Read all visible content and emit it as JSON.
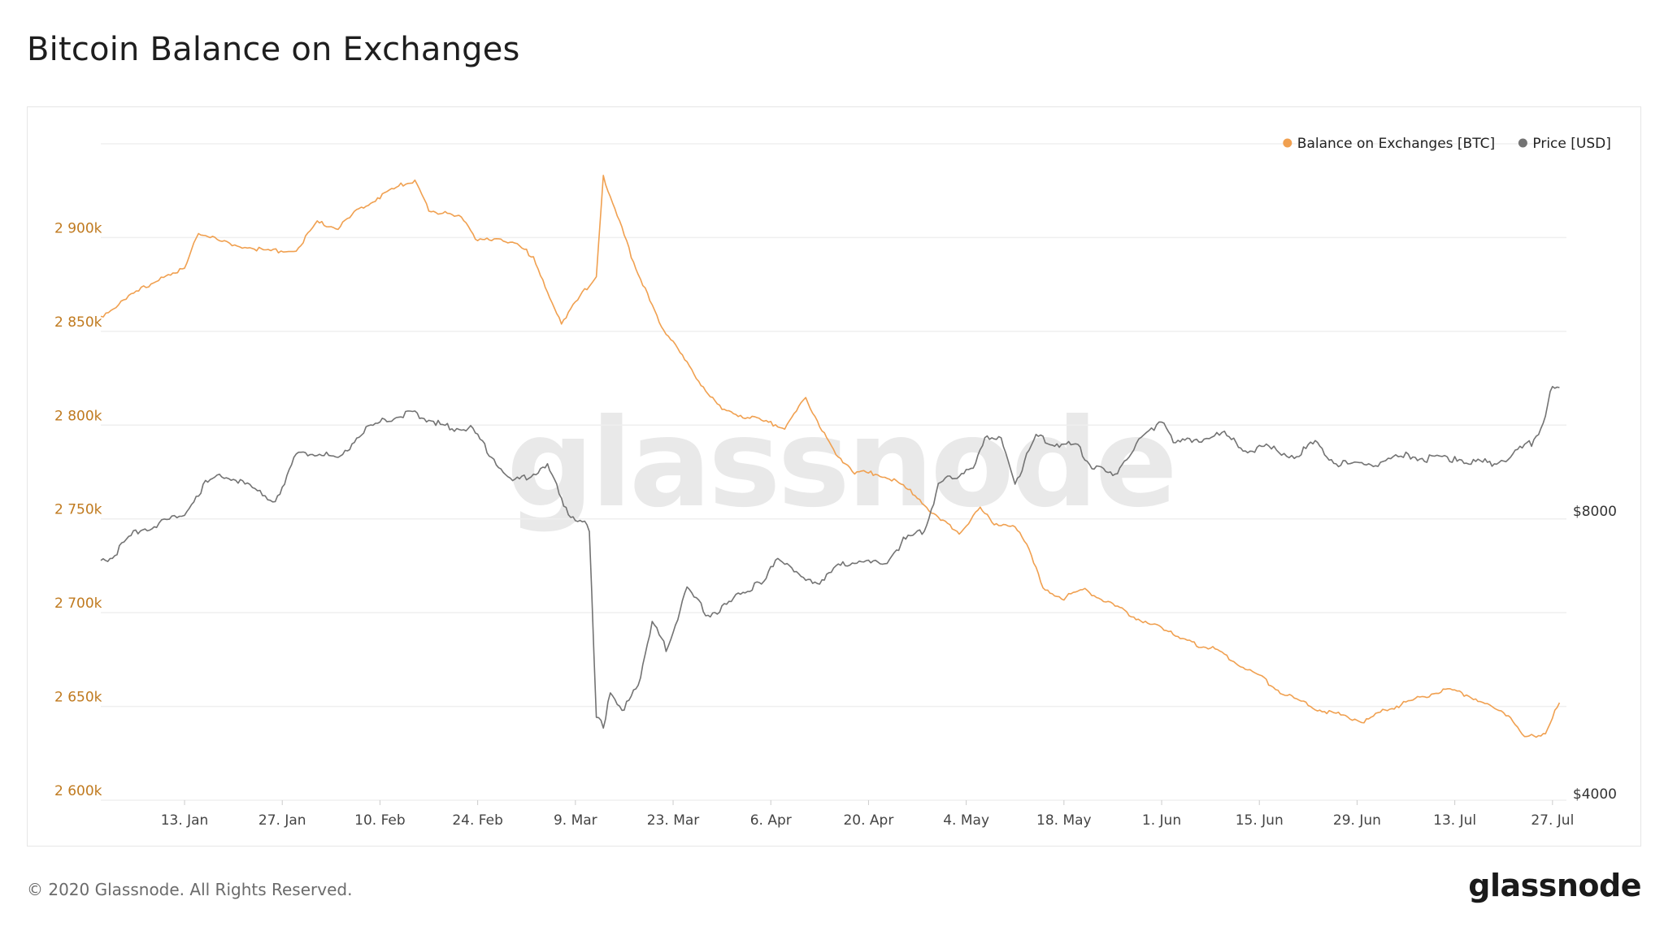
{
  "page": {
    "title": "Bitcoin Balance on Exchanges",
    "copyright": "© 2020 Glassnode. All Rights Reserved.",
    "brand": "glassnode",
    "watermark": "glassnode"
  },
  "colors": {
    "balance": "#f0a050",
    "price": "#737373",
    "left_axis_text": "#c07a1f",
    "grid": "#efefef"
  },
  "chart_data": {
    "type": "line",
    "title": "Bitcoin Balance on Exchanges",
    "x_range": [
      "2020-01-01",
      "2020-07-29"
    ],
    "x_ticks": [
      "13. Jan",
      "27. Jan",
      "10. Feb",
      "24. Feb",
      "9. Mar",
      "23. Mar",
      "6. Apr",
      "20. Apr",
      "4. May",
      "18. May",
      "1. Jun",
      "15. Jun",
      "29. Jun",
      "13. Jul",
      "27. Jul"
    ],
    "y_left": {
      "label": "",
      "ylim": [
        2600000,
        2950000
      ],
      "ticks": [
        2600000,
        2650000,
        2700000,
        2750000,
        2800000,
        2850000,
        2900000
      ],
      "tick_labels": [
        "2 600k",
        "2 650k",
        "2 700k",
        "2 750k",
        "2 800k",
        "2 850k",
        "2 900k"
      ]
    },
    "y_right": {
      "label": "",
      "scale": "log",
      "ticks": [
        4000,
        8000
      ],
      "tick_labels": [
        "$4000",
        "$8000"
      ]
    },
    "legend": {
      "placement": "top-right"
    },
    "grid": true,
    "series": [
      {
        "name": "Balance on Exchanges [BTC]",
        "axis": "left",
        "color": "#f0a050",
        "points": [
          [
            "2020-01-01",
            2858000
          ],
          [
            "2020-01-05",
            2868000
          ],
          [
            "2020-01-10",
            2880000
          ],
          [
            "2020-01-13",
            2883000
          ],
          [
            "2020-01-15",
            2903000
          ],
          [
            "2020-01-18",
            2898000
          ],
          [
            "2020-01-22",
            2895000
          ],
          [
            "2020-01-25",
            2893000
          ],
          [
            "2020-01-29",
            2893000
          ],
          [
            "2020-02-01",
            2908000
          ],
          [
            "2020-02-04",
            2905000
          ],
          [
            "2020-02-07",
            2915000
          ],
          [
            "2020-02-10",
            2922000
          ],
          [
            "2020-02-13",
            2928000
          ],
          [
            "2020-02-15",
            2930000
          ],
          [
            "2020-02-17",
            2915000
          ],
          [
            "2020-02-20",
            2912000
          ],
          [
            "2020-02-22",
            2910000
          ],
          [
            "2020-02-24",
            2898000
          ],
          [
            "2020-02-27",
            2900000
          ],
          [
            "2020-03-01",
            2895000
          ],
          [
            "2020-03-03",
            2890000
          ],
          [
            "2020-03-05",
            2870000
          ],
          [
            "2020-03-07",
            2855000
          ],
          [
            "2020-03-10",
            2870000
          ],
          [
            "2020-03-12",
            2880000
          ],
          [
            "2020-03-13",
            2932000
          ],
          [
            "2020-03-15",
            2912000
          ],
          [
            "2020-03-17",
            2890000
          ],
          [
            "2020-03-19",
            2872000
          ],
          [
            "2020-03-21",
            2855000
          ],
          [
            "2020-03-24",
            2838000
          ],
          [
            "2020-03-27",
            2822000
          ],
          [
            "2020-03-30",
            2808000
          ],
          [
            "2020-04-02",
            2805000
          ],
          [
            "2020-04-05",
            2802000
          ],
          [
            "2020-04-08",
            2799000
          ],
          [
            "2020-04-11",
            2814000
          ],
          [
            "2020-04-13",
            2800000
          ],
          [
            "2020-04-15",
            2786000
          ],
          [
            "2020-04-18",
            2775000
          ],
          [
            "2020-04-21",
            2774000
          ],
          [
            "2020-04-24",
            2770000
          ],
          [
            "2020-04-27",
            2762000
          ],
          [
            "2020-04-30",
            2750000
          ],
          [
            "2020-05-03",
            2743000
          ],
          [
            "2020-05-06",
            2755000
          ],
          [
            "2020-05-08",
            2748000
          ],
          [
            "2020-05-11",
            2745000
          ],
          [
            "2020-05-13",
            2735000
          ],
          [
            "2020-05-15",
            2712000
          ],
          [
            "2020-05-18",
            2708000
          ],
          [
            "2020-05-21",
            2712000
          ],
          [
            "2020-05-24",
            2706000
          ],
          [
            "2020-05-27",
            2700000
          ],
          [
            "2020-05-30",
            2694000
          ],
          [
            "2020-06-02",
            2691000
          ],
          [
            "2020-06-04",
            2686000
          ],
          [
            "2020-06-06",
            2683000
          ],
          [
            "2020-06-09",
            2680000
          ],
          [
            "2020-06-12",
            2673000
          ],
          [
            "2020-06-15",
            2666000
          ],
          [
            "2020-06-18",
            2658000
          ],
          [
            "2020-06-21",
            2652000
          ],
          [
            "2020-06-24",
            2648000
          ],
          [
            "2020-06-27",
            2645000
          ],
          [
            "2020-06-30",
            2642000
          ],
          [
            "2020-07-03",
            2648000
          ],
          [
            "2020-07-06",
            2652000
          ],
          [
            "2020-07-09",
            2656000
          ],
          [
            "2020-07-12",
            2659000
          ],
          [
            "2020-07-15",
            2656000
          ],
          [
            "2020-07-18",
            2650000
          ],
          [
            "2020-07-21",
            2645000
          ],
          [
            "2020-07-23",
            2633000
          ],
          [
            "2020-07-26",
            2636000
          ],
          [
            "2020-07-28",
            2652000
          ]
        ]
      },
      {
        "name": "Price [USD]",
        "axis": "right",
        "color": "#737373",
        "points": [
          [
            "2020-01-01",
            7200
          ],
          [
            "2020-01-03",
            7300
          ],
          [
            "2020-01-06",
            7750
          ],
          [
            "2020-01-09",
            7850
          ],
          [
            "2020-01-13",
            8100
          ],
          [
            "2020-01-16",
            8700
          ],
          [
            "2020-01-19",
            8900
          ],
          [
            "2020-01-22",
            8650
          ],
          [
            "2020-01-26",
            8350
          ],
          [
            "2020-01-29",
            9300
          ],
          [
            "2020-02-01",
            9400
          ],
          [
            "2020-02-04",
            9200
          ],
          [
            "2020-02-07",
            9800
          ],
          [
            "2020-02-10",
            10100
          ],
          [
            "2020-02-13",
            10300
          ],
          [
            "2020-02-15",
            10350
          ],
          [
            "2020-02-18",
            10100
          ],
          [
            "2020-02-20",
            9950
          ],
          [
            "2020-02-23",
            9950
          ],
          [
            "2020-02-26",
            9300
          ],
          [
            "2020-02-29",
            8700
          ],
          [
            "2020-03-02",
            8850
          ],
          [
            "2020-03-05",
            9050
          ],
          [
            "2020-03-08",
            8100
          ],
          [
            "2020-03-10",
            7900
          ],
          [
            "2020-03-11",
            7800
          ],
          [
            "2020-03-12",
            4900
          ],
          [
            "2020-03-13",
            4800
          ],
          [
            "2020-03-14",
            5200
          ],
          [
            "2020-03-16",
            5000
          ],
          [
            "2020-03-18",
            5300
          ],
          [
            "2020-03-20",
            6200
          ],
          [
            "2020-03-22",
            5800
          ],
          [
            "2020-03-25",
            6700
          ],
          [
            "2020-03-28",
            6300
          ],
          [
            "2020-03-31",
            6450
          ],
          [
            "2020-04-02",
            6700
          ],
          [
            "2020-04-05",
            6800
          ],
          [
            "2020-04-07",
            7300
          ],
          [
            "2020-04-10",
            6900
          ],
          [
            "2020-04-13",
            6850
          ],
          [
            "2020-04-16",
            7100
          ],
          [
            "2020-04-19",
            7200
          ],
          [
            "2020-04-22",
            7100
          ],
          [
            "2020-04-25",
            7550
          ],
          [
            "2020-04-28",
            7750
          ],
          [
            "2020-04-30",
            8650
          ],
          [
            "2020-05-02",
            8850
          ],
          [
            "2020-05-05",
            9000
          ],
          [
            "2020-05-07",
            9800
          ],
          [
            "2020-05-09",
            9650
          ],
          [
            "2020-05-11",
            8700
          ],
          [
            "2020-05-14",
            9750
          ],
          [
            "2020-05-17",
            9600
          ],
          [
            "2020-05-20",
            9500
          ],
          [
            "2020-05-22",
            9100
          ],
          [
            "2020-05-25",
            8850
          ],
          [
            "2020-05-28",
            9500
          ],
          [
            "2020-06-01",
            10200
          ],
          [
            "2020-06-03",
            9600
          ],
          [
            "2020-06-06",
            9700
          ],
          [
            "2020-06-10",
            9800
          ],
          [
            "2020-06-13",
            9450
          ],
          [
            "2020-06-16",
            9500
          ],
          [
            "2020-06-20",
            9300
          ],
          [
            "2020-06-23",
            9600
          ],
          [
            "2020-06-26",
            9150
          ],
          [
            "2020-06-29",
            9100
          ],
          [
            "2020-07-02",
            9150
          ],
          [
            "2020-07-06",
            9300
          ],
          [
            "2020-07-09",
            9250
          ],
          [
            "2020-07-13",
            9250
          ],
          [
            "2020-07-16",
            9150
          ],
          [
            "2020-07-19",
            9150
          ],
          [
            "2020-07-22",
            9400
          ],
          [
            "2020-07-24",
            9600
          ],
          [
            "2020-07-26",
            10200
          ],
          [
            "2020-07-27",
            11100
          ],
          [
            "2020-07-28",
            11000
          ]
        ]
      }
    ]
  }
}
